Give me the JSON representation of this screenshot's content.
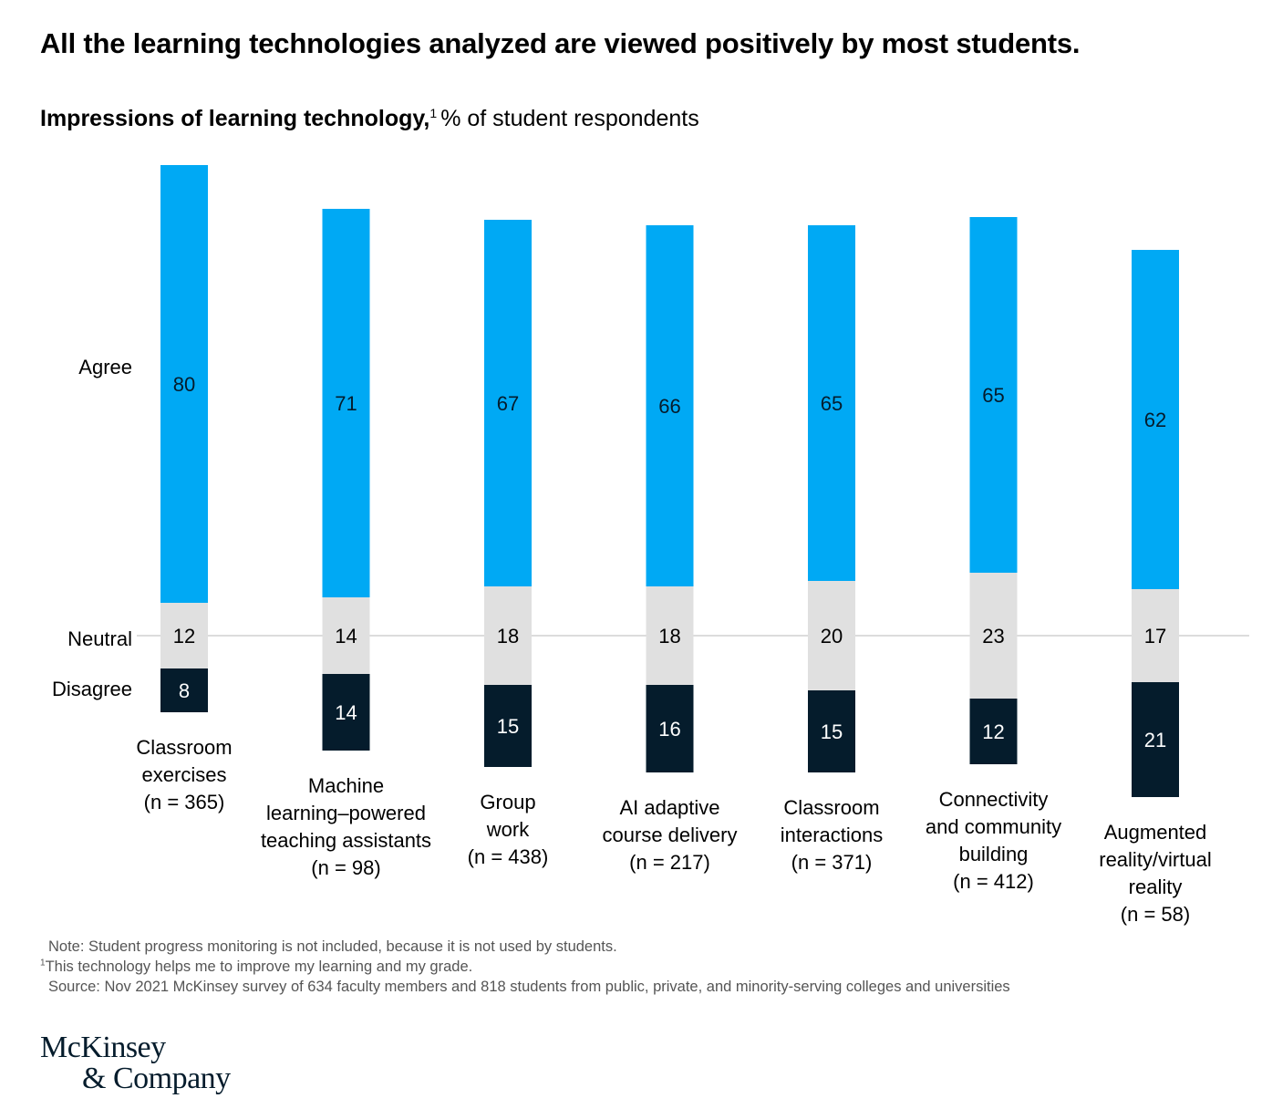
{
  "title": "All the learning technologies analyzed are viewed positively by most students.",
  "subtitle": {
    "bold": "Impressions of learning technology,",
    "footnote_mark": "1",
    "rest": "% of student respondents"
  },
  "notes": {
    "note": "Note: Student progress monitoring is not included, because it is not used by students.",
    "footnote_mark": "1",
    "footnote": "This technology helps me to improve my learning and my grade.",
    "source": "Source: Nov 2021 McKinsey survey of 634 faculty members and 818 students from public, private, and minority-serving colleges and universities"
  },
  "logo": {
    "line1": "McKinsey",
    "line2": "& Company"
  },
  "colors": {
    "agree": "#00a9f4",
    "neutral": "#e0e0e0",
    "disagree": "#051c2c",
    "baseline": "#d0d0d0"
  },
  "chart_data": {
    "type": "bar",
    "stacked": true,
    "baseline": "neutral midpoint",
    "categories": [
      [
        "Classroom",
        "exercises",
        "(n = 365)"
      ],
      [
        "Machine",
        "learning–powered",
        "teaching assistants",
        "(n = 98)"
      ],
      [
        "Group",
        "work",
        "(n = 438)"
      ],
      [
        "AI adaptive",
        "course delivery",
        "(n = 217)"
      ],
      [
        "Classroom",
        "interactions",
        "(n = 371)"
      ],
      [
        "Connectivity",
        "and community",
        "building",
        "(n = 412)"
      ],
      [
        "Augmented",
        "reality/virtual",
        "reality",
        "(n = 58)"
      ]
    ],
    "series": [
      {
        "name": "Agree",
        "values": [
          80,
          71,
          67,
          66,
          65,
          65,
          62
        ]
      },
      {
        "name": "Neutral",
        "values": [
          12,
          14,
          18,
          18,
          20,
          23,
          17
        ]
      },
      {
        "name": "Disagree",
        "values": [
          8,
          14,
          15,
          16,
          15,
          12,
          21
        ]
      }
    ]
  }
}
